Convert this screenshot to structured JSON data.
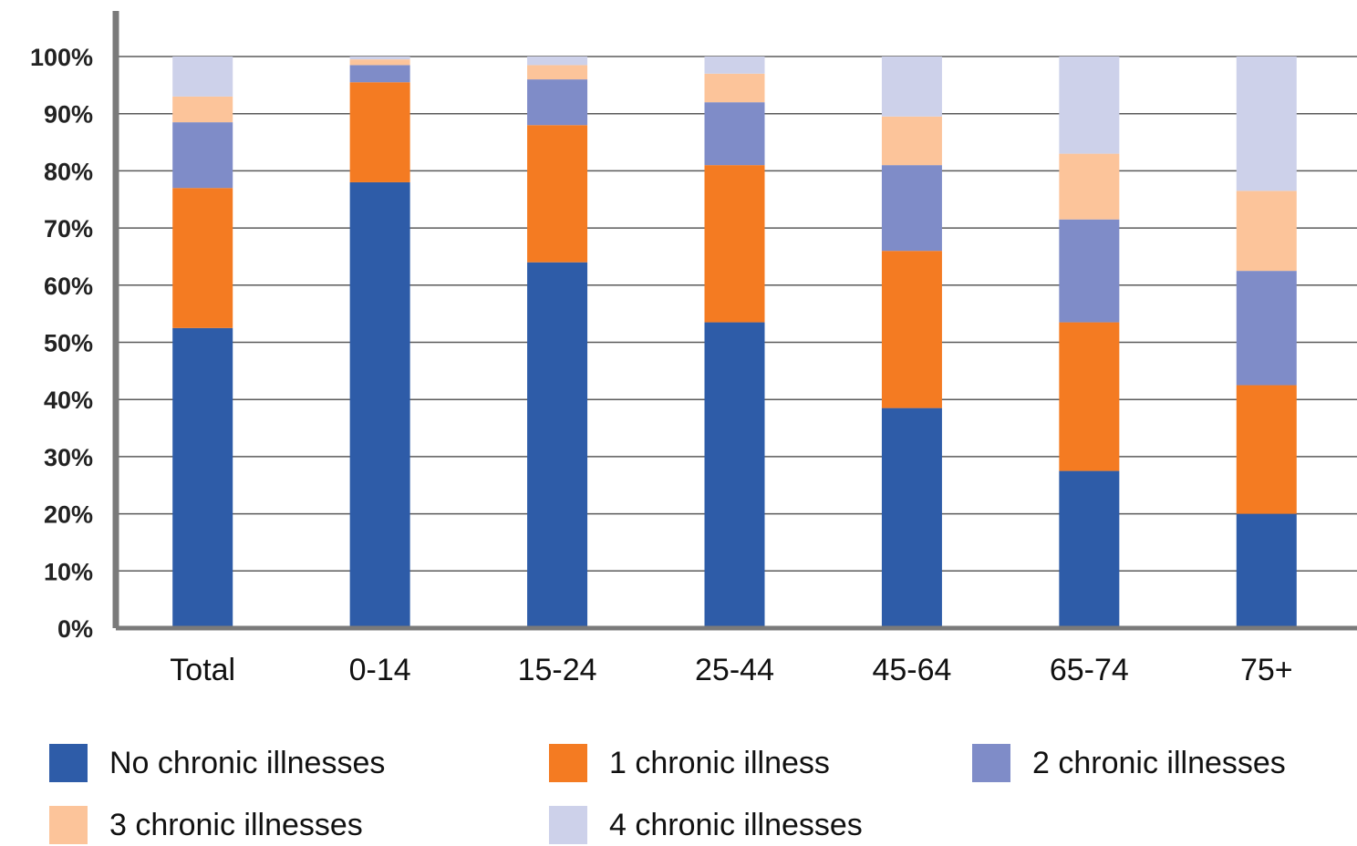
{
  "chart_data": {
    "type": "bar",
    "stacked": true,
    "categories": [
      "Total",
      "0-14",
      "15-24",
      "25-44",
      "45-64",
      "65-74",
      "75+"
    ],
    "series": [
      {
        "name": "No chronic illnesses",
        "color": "#2e5ca8",
        "values": [
          52.5,
          78,
          64,
          53.5,
          38.5,
          27.5,
          20
        ]
      },
      {
        "name": "1 chronic illness",
        "color": "#f47b22",
        "values": [
          24.5,
          17.5,
          24,
          27.5,
          27.5,
          26,
          22.5
        ]
      },
      {
        "name": "2 chronic illnesses",
        "color": "#7f8cc8",
        "values": [
          11.5,
          3,
          8,
          11,
          15,
          18,
          20
        ]
      },
      {
        "name": "3 chronic illnesses",
        "color": "#fcc49a",
        "values": [
          4.5,
          1,
          2.5,
          5,
          8.5,
          11.5,
          14
        ]
      },
      {
        "name": "4 chronic illnesses",
        "color": "#cdd1ea",
        "values": [
          7,
          0.5,
          1.5,
          3,
          10.5,
          17,
          23.5
        ]
      }
    ],
    "ylim": [
      0,
      100
    ],
    "yticks": [
      "0%",
      "10%",
      "20%",
      "30%",
      "40%",
      "50%",
      "60%",
      "70%",
      "80%",
      "90%",
      "100%"
    ],
    "grid": true,
    "legend_position": "bottom",
    "title": "",
    "xlabel": "",
    "ylabel": ""
  }
}
